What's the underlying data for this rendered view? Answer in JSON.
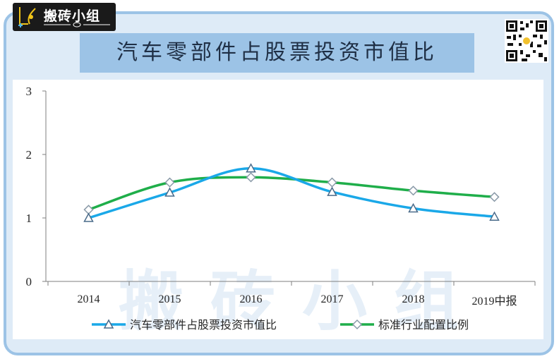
{
  "brand": {
    "name": "搬砖小组",
    "watermark": "搬砖小组"
  },
  "chart_data": {
    "type": "line",
    "title": "汽车零部件占股票投资市值比",
    "categories": [
      "2014",
      "2015",
      "2016",
      "2017",
      "2018",
      "2019中报"
    ],
    "series": [
      {
        "name": "汽车零部件占股票投资市值比",
        "values": [
          1.0,
          1.4,
          1.78,
          1.41,
          1.15,
          1.02
        ],
        "color": "#1aa8e8",
        "marker": "triangle"
      },
      {
        "name": "标准行业配置比例",
        "values": [
          1.13,
          1.56,
          1.64,
          1.56,
          1.43,
          1.33
        ],
        "color": "#1fae4a",
        "marker": "diamond"
      }
    ],
    "yticks": [
      0,
      1,
      2,
      3
    ],
    "ylim": [
      0,
      3
    ],
    "legend_position": "bottom",
    "grid": false
  }
}
